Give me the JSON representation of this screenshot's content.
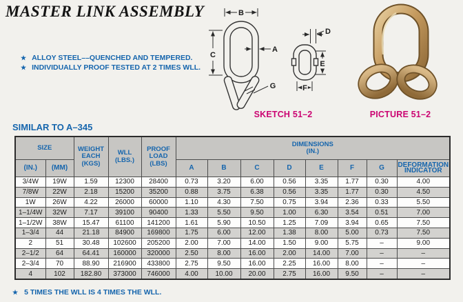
{
  "page": {
    "title": "MASTER LINK ASSEMBLY",
    "star": "★",
    "bullets": [
      "ALLOY STEEL––QUENCHED AND TEMPERED.",
      "INDIVIDUALLY PROOF TESTED AT 2 TIMES WLL."
    ],
    "sketch_label": "SKETCH 51–2",
    "picture_label": "PICTURE 51–2",
    "similar_heading": "SIMILAR TO A–345",
    "footnote": "5 TIMES THE WLL IS 4 TIMES THE WLL."
  },
  "sketch": {
    "labels": {
      "a": "A",
      "b": "B",
      "c": "C",
      "d": "D",
      "e": "E",
      "f": "F",
      "g": "G"
    }
  },
  "table": {
    "header": {
      "size": "SIZE",
      "size_in": "(IN.)",
      "size_mm": "(MM)",
      "weight_each": "WEIGHT\nEACH\n(KGS)",
      "wll": "WLL\n(LBS.)",
      "proof_load": "PROOF\nLOAD\n(LBS)",
      "dimensions": "DIMENSIONS\n(IN.)",
      "dims": [
        "A",
        "B",
        "C",
        "D",
        "E",
        "F",
        "G"
      ],
      "deformation": "DEFORMATION\nINDICATOR"
    },
    "rows": [
      [
        "3/4W",
        "19W",
        "1.59",
        "12300",
        "28400",
        "0.73",
        "3.20",
        "6.00",
        "0.56",
        "3.35",
        "1.77",
        "0.30",
        "4.00"
      ],
      [
        "7/8W",
        "22W",
        "2.18",
        "15200",
        "35200",
        "0.88",
        "3.75",
        "6.38",
        "0.56",
        "3.35",
        "1.77",
        "0.30",
        "4.50"
      ],
      [
        "1W",
        "26W",
        "4.22",
        "26000",
        "60000",
        "1.10",
        "4.30",
        "7.50",
        "0.75",
        "3.94",
        "2.36",
        "0.33",
        "5.50"
      ],
      [
        "1–1/4W",
        "32W",
        "7.17",
        "39100",
        "90400",
        "1.33",
        "5.50",
        "9.50",
        "1.00",
        "6.30",
        "3.54",
        "0.51",
        "7.00"
      ],
      [
        "1–1/2W",
        "38W",
        "15.47",
        "61100",
        "141200",
        "1.61",
        "5.90",
        "10.50",
        "1.25",
        "7.09",
        "3.94",
        "0.65",
        "7.50"
      ],
      [
        "1–3/4",
        "44",
        "21.18",
        "84900",
        "169800",
        "1.75",
        "6.00",
        "12.00",
        "1.38",
        "8.00",
        "5.00",
        "0.73",
        "7.50"
      ],
      [
        "2",
        "51",
        "30.48",
        "102600",
        "205200",
        "2.00",
        "7.00",
        "14.00",
        "1.50",
        "9.00",
        "5.75",
        "–",
        "9.00"
      ],
      [
        "2–1/2",
        "64",
        "64.41",
        "160000",
        "320000",
        "2.50",
        "8.00",
        "16.00",
        "2.00",
        "14.00",
        "7.00",
        "–",
        "–"
      ],
      [
        "2–3/4",
        "70",
        "88.90",
        "216900",
        "433800",
        "2.75",
        "9.50",
        "16.00",
        "2.25",
        "16.00",
        "8.00",
        "–",
        "–"
      ],
      [
        "4",
        "102",
        "182.80",
        "373000",
        "746000",
        "4.00",
        "10.00",
        "20.00",
        "2.75",
        "16.00",
        "9.50",
        "–",
        "–"
      ]
    ]
  },
  "colors": {
    "blue": "#1565ad",
    "magenta": "#cb0472",
    "page_bg": "#f2f1ed",
    "header_gray": "#c7c6c3",
    "row_alt_gray": "#d3d2cf",
    "row_white": "#fdfdfc",
    "table_border": "#2b2b2b",
    "line_dark": "#333333",
    "gold_light": "#e6cd9d",
    "gold_mid": "#c59a5e",
    "gold_dark": "#8f6a38",
    "gold_outline": "#6e5128"
  }
}
